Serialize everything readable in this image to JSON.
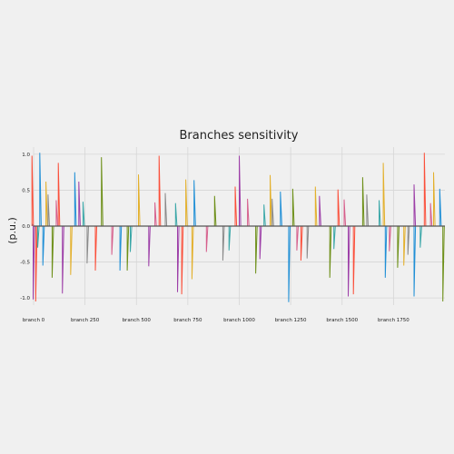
{
  "chart_data": {
    "type": "line",
    "title": "Branches sensitivity",
    "xlabel": "",
    "ylabel": "(p.u.)",
    "xlim": [
      0,
      2000
    ],
    "ylim": [
      -1.1,
      1.1
    ],
    "grid": true,
    "legend": "none",
    "x_ticks": [
      {
        "value": 0,
        "label": "branch 0"
      },
      {
        "value": 250,
        "label": "branch 250"
      },
      {
        "value": 500,
        "label": "branch 500"
      },
      {
        "value": 750,
        "label": "branch 750"
      },
      {
        "value": 1000,
        "label": "branch 1000"
      },
      {
        "value": 1250,
        "label": "branch 1250"
      },
      {
        "value": 1500,
        "label": "branch 1500"
      },
      {
        "value": 1750,
        "label": "branch 1750"
      }
    ],
    "y_ticks": [
      {
        "value": 1.0,
        "label": "1.0"
      },
      {
        "value": 0.5,
        "label": "0.5"
      },
      {
        "value": 0.0,
        "label": "0.0"
      },
      {
        "value": -0.5,
        "label": "-0.5"
      },
      {
        "value": -1.0,
        "label": "-1.0"
      }
    ],
    "series": [
      {
        "color": "#1f8fd6",
        "values": [
          [
            -5,
            0.02
          ],
          [
            30,
            1.02
          ],
          [
            45,
            -0.55
          ],
          [
            200,
            0.75
          ],
          [
            420,
            -0.62
          ],
          [
            780,
            0.64
          ],
          [
            1200,
            0.48
          ],
          [
            1240,
            -1.06
          ],
          [
            1710,
            -0.72
          ],
          [
            1850,
            -0.98
          ],
          [
            1975,
            0.52
          ]
        ]
      },
      {
        "color": "#fb4f3a",
        "values": [
          [
            -8,
            0.98
          ],
          [
            10,
            -1.05
          ],
          [
            120,
            0.88
          ],
          [
            300,
            -0.62
          ],
          [
            610,
            0.98
          ],
          [
            720,
            -0.95
          ],
          [
            980,
            0.55
          ],
          [
            1300,
            -0.48
          ],
          [
            1480,
            0.51
          ],
          [
            1555,
            -0.95
          ],
          [
            1900,
            1.02
          ]
        ]
      },
      {
        "color": "#e3b02c",
        "values": [
          [
            60,
            0.62
          ],
          [
            180,
            -0.68
          ],
          [
            510,
            0.72
          ],
          [
            740,
            0.65
          ],
          [
            770,
            -0.74
          ],
          [
            1150,
            0.71
          ],
          [
            1370,
            0.55
          ],
          [
            1700,
            0.88
          ],
          [
            1800,
            -0.55
          ],
          [
            1945,
            0.75
          ]
        ]
      },
      {
        "color": "#6d8f18",
        "values": [
          [
            90,
            -0.72
          ],
          [
            330,
            0.96
          ],
          [
            455,
            -0.62
          ],
          [
            880,
            0.42
          ],
          [
            1080,
            -0.66
          ],
          [
            1260,
            0.52
          ],
          [
            1440,
            -0.72
          ],
          [
            1600,
            0.68
          ],
          [
            1770,
            -0.58
          ],
          [
            1990,
            -1.05
          ]
        ]
      },
      {
        "color": "#9d3fa8",
        "values": [
          [
            -2,
            -1.02
          ],
          [
            140,
            -0.94
          ],
          [
            220,
            0.62
          ],
          [
            560,
            -0.56
          ],
          [
            700,
            -0.92
          ],
          [
            1000,
            0.98
          ],
          [
            1100,
            -0.46
          ],
          [
            1390,
            0.42
          ],
          [
            1530,
            -0.98
          ],
          [
            1850,
            0.58
          ]
        ]
      },
      {
        "color": "#8a8a8a",
        "values": [
          [
            70,
            0.44
          ],
          [
            260,
            -0.52
          ],
          [
            640,
            0.46
          ],
          [
            920,
            -0.48
          ],
          [
            1160,
            0.38
          ],
          [
            1330,
            -0.45
          ],
          [
            1620,
            0.44
          ],
          [
            1820,
            -0.4
          ]
        ]
      },
      {
        "color": "#3aa7a8",
        "values": [
          [
            20,
            -0.3
          ],
          [
            240,
            0.34
          ],
          [
            470,
            -0.36
          ],
          [
            690,
            0.32
          ],
          [
            950,
            -0.34
          ],
          [
            1120,
            0.3
          ],
          [
            1460,
            -0.32
          ],
          [
            1680,
            0.36
          ],
          [
            1880,
            -0.3
          ]
        ]
      },
      {
        "color": "#d65f8c",
        "values": [
          [
            110,
            0.36
          ],
          [
            380,
            -0.4
          ],
          [
            590,
            0.33
          ],
          [
            840,
            -0.36
          ],
          [
            1040,
            0.38
          ],
          [
            1280,
            -0.34
          ],
          [
            1510,
            0.37
          ],
          [
            1730,
            -0.35
          ],
          [
            1930,
            0.32
          ]
        ]
      }
    ]
  }
}
